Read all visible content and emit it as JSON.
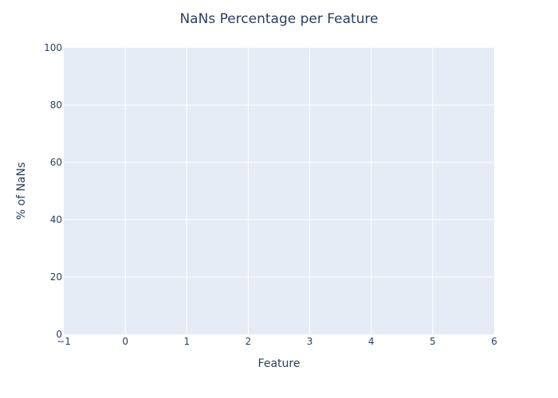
{
  "chart_data": {
    "type": "bar",
    "title": "NaNs Percentage per Feature",
    "xlabel": "Feature",
    "ylabel": "% of NaNs",
    "xlim": [
      -1,
      6
    ],
    "ylim": [
      0,
      100
    ],
    "x_ticks": [
      "−1",
      "0",
      "1",
      "2",
      "3",
      "4",
      "5",
      "6"
    ],
    "y_ticks": [
      "0",
      "20",
      "40",
      "60",
      "80",
      "100"
    ],
    "grid": true,
    "categories": [],
    "values": [],
    "colors": {
      "plot_background": "#e5ecf6",
      "paper_background": "#ffffff",
      "grid": "#ffffff",
      "text": "#2a3f5f"
    }
  }
}
